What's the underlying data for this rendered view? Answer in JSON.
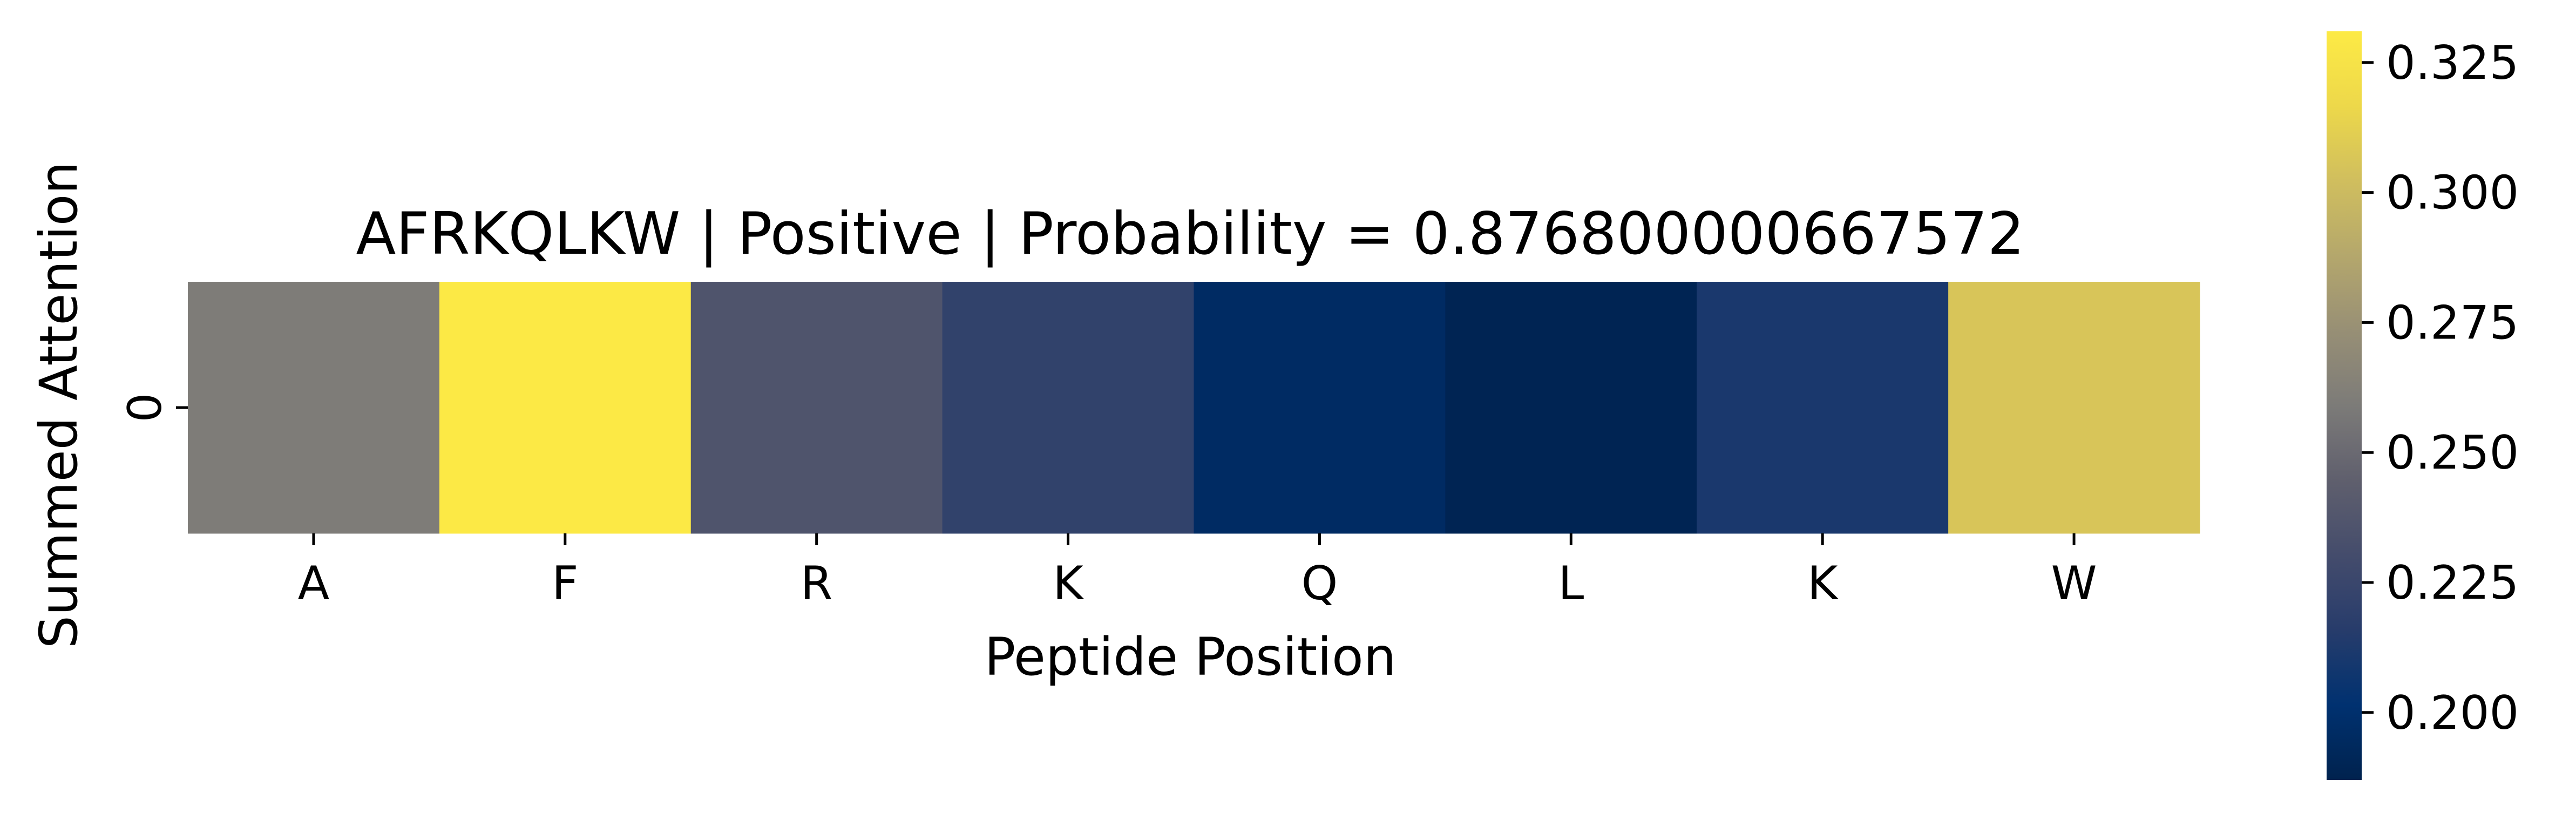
{
  "chart_data": {
    "type": "heatmap",
    "title": "AFRKQLKW | Positive | Probability = 0.876800000667572",
    "xlabel": "Peptide Position",
    "ylabel": "Summed Attention",
    "x": [
      "A",
      "F",
      "R",
      "K",
      "Q",
      "L",
      "K",
      "W"
    ],
    "y": [
      "0"
    ],
    "values": [
      [
        0.26,
        0.33,
        0.236,
        0.221,
        0.196,
        0.189,
        0.211,
        0.306
      ]
    ],
    "colormap": "cividis",
    "colorbar": {
      "range": [
        0.187,
        0.331
      ],
      "ticks": [
        0.2,
        0.225,
        0.25,
        0.275,
        0.3,
        0.325
      ],
      "tick_labels": [
        "0.200",
        "0.225",
        "0.250",
        "0.275",
        "0.300",
        "0.325"
      ]
    },
    "grid": false,
    "legend": "colorbar-right"
  }
}
